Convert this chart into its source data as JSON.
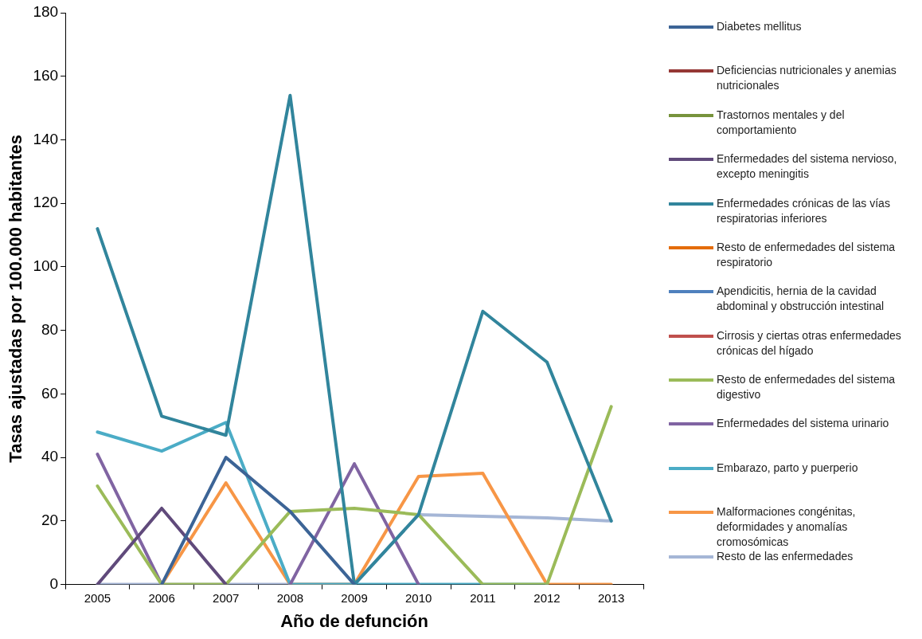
{
  "chart_data": {
    "type": "line",
    "xlabel": "Año de defunción",
    "ylabel": "Tasas ajustadas por 100.000 habitantes",
    "categories": [
      "2005",
      "2006",
      "2007",
      "2008",
      "2009",
      "2010",
      "2011",
      "2012",
      "2013"
    ],
    "ylim": [
      0,
      180
    ],
    "yticks": [
      0,
      20,
      40,
      60,
      80,
      100,
      120,
      140,
      160,
      180
    ],
    "grid": false,
    "legend": "right",
    "marker": "none",
    "line_style": "solid",
    "series": [
      {
        "name": "Diabetes mellitus",
        "color": "#3c6496",
        "values": [
          null,
          0,
          40,
          23,
          0,
          null,
          null,
          null,
          null
        ]
      },
      {
        "name": "Deficiencias nutricionales y anemias nutricionales",
        "color": "#953735",
        "values": [
          null,
          null,
          null,
          null,
          null,
          null,
          null,
          null,
          null
        ]
      },
      {
        "name": "Trastornos mentales y del comportamiento",
        "color": "#77933c",
        "values": [
          null,
          null,
          null,
          null,
          null,
          null,
          null,
          null,
          null
        ]
      },
      {
        "name": "Enfermedades del sistema nervioso, excepto meningitis",
        "color": "#604a7b",
        "values": [
          0,
          24,
          0,
          null,
          null,
          null,
          null,
          null,
          null
        ]
      },
      {
        "name": "Enfermedades crónicas de las vías respiratorias inferiores",
        "color": "#31859c",
        "values": [
          112,
          53,
          47,
          154,
          0,
          22,
          86,
          70,
          20
        ]
      },
      {
        "name": "Resto de enfermedades del sistema respiratorio",
        "color": "#e46c0a",
        "values": [
          null,
          null,
          null,
          null,
          null,
          null,
          null,
          null,
          null
        ]
      },
      {
        "name": "Apendicitis, hernia de la cavidad abdominal y obstrucción intestinal",
        "color": "#4f81bd",
        "values": [
          null,
          null,
          null,
          null,
          null,
          null,
          null,
          null,
          null
        ]
      },
      {
        "name": "Cirrosis y ciertas otras enfermedades crónicas del hígado",
        "color": "#c0504d",
        "values": [
          null,
          null,
          null,
          null,
          null,
          null,
          null,
          null,
          null
        ]
      },
      {
        "name": "Resto de enfermedades del sistema digestivo",
        "color": "#9bbb59",
        "values": [
          31,
          0,
          0,
          23,
          24,
          22,
          0,
          0,
          56
        ]
      },
      {
        "name": "Enfermedades del sistema urinario",
        "color": "#8064a2",
        "values": [
          41,
          0,
          null,
          0,
          38,
          0,
          null,
          null,
          null
        ]
      },
      {
        "name": "Embarazo, parto y puerperio",
        "color": "#4bacc6",
        "values": [
          48,
          42,
          51,
          0,
          0,
          0,
          0,
          0,
          null
        ]
      },
      {
        "name": "Malformaciones congénitas, deformidades y anomalías cromosómicas",
        "color": "#f79646",
        "values": [
          null,
          0,
          32,
          0,
          0,
          34,
          35,
          0,
          0
        ]
      },
      {
        "name": "Resto de las enfermedades",
        "color": "#a5b6d6",
        "values": [
          0,
          0,
          0,
          0,
          0,
          22,
          21.5,
          21,
          20
        ]
      }
    ]
  }
}
